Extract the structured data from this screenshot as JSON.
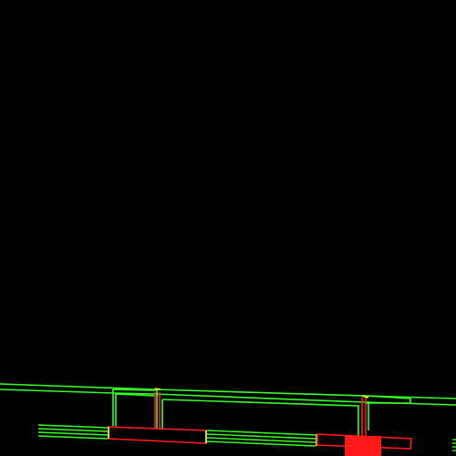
{
  "scene": {
    "background": "#000000",
    "colors": {
      "green": "#33ff22",
      "red": "#ff1a1a",
      "yellow": "#ffff33",
      "dark_red": "#cc0000"
    }
  }
}
